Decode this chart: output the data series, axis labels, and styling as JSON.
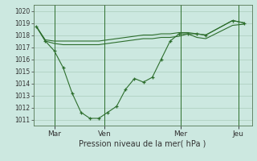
{
  "xlabel": "Pression niveau de la mer( hPa )",
  "bg_color": "#cce8e0",
  "grid_color": "#aaccbb",
  "line_color": "#2d6e2d",
  "ylim": [
    1010.5,
    1020.5
  ],
  "yticks": [
    1011,
    1012,
    1013,
    1014,
    1015,
    1016,
    1017,
    1018,
    1019,
    1020
  ],
  "day_labels": [
    "Mar",
    "Ven",
    "Mer",
    "Jeu"
  ],
  "day_positions": [
    24,
    92,
    194,
    272
  ],
  "vline_x": [
    24,
    92,
    194,
    272
  ],
  "n_points": 22,
  "main_x": [
    0,
    12,
    24,
    36,
    48,
    60,
    72,
    84,
    96,
    108,
    120,
    132,
    144,
    156,
    168,
    180,
    192,
    204,
    216,
    228,
    264,
    280
  ],
  "main_y": [
    1018.7,
    1017.5,
    1016.7,
    1015.3,
    1013.2,
    1011.6,
    1011.1,
    1011.1,
    1011.6,
    1012.1,
    1013.5,
    1014.4,
    1014.1,
    1014.5,
    1016.0,
    1017.5,
    1018.1,
    1018.1,
    1018.1,
    1018.0,
    1019.2,
    1019.0
  ],
  "upper_x": [
    0,
    12,
    24,
    36,
    48,
    60,
    72,
    84,
    96,
    108,
    120,
    132,
    144,
    156,
    168,
    180,
    192,
    204,
    216,
    228,
    264,
    280
  ],
  "upper_y": [
    1018.7,
    1017.6,
    1017.5,
    1017.5,
    1017.5,
    1017.5,
    1017.5,
    1017.5,
    1017.6,
    1017.7,
    1017.8,
    1017.9,
    1018.0,
    1018.0,
    1018.1,
    1018.1,
    1018.2,
    1018.2,
    1018.1,
    1018.0,
    1019.2,
    1019.0
  ],
  "lower_x": [
    0,
    12,
    24,
    36,
    48,
    60,
    72,
    84,
    96,
    108,
    120,
    132,
    144,
    156,
    168,
    180,
    192,
    204,
    216,
    228,
    264,
    280
  ],
  "lower_y": [
    1018.7,
    1017.5,
    1017.3,
    1017.2,
    1017.2,
    1017.2,
    1017.2,
    1017.2,
    1017.3,
    1017.4,
    1017.5,
    1017.6,
    1017.7,
    1017.7,
    1017.8,
    1017.8,
    1017.9,
    1018.1,
    1017.8,
    1017.7,
    1018.8,
    1018.9
  ]
}
